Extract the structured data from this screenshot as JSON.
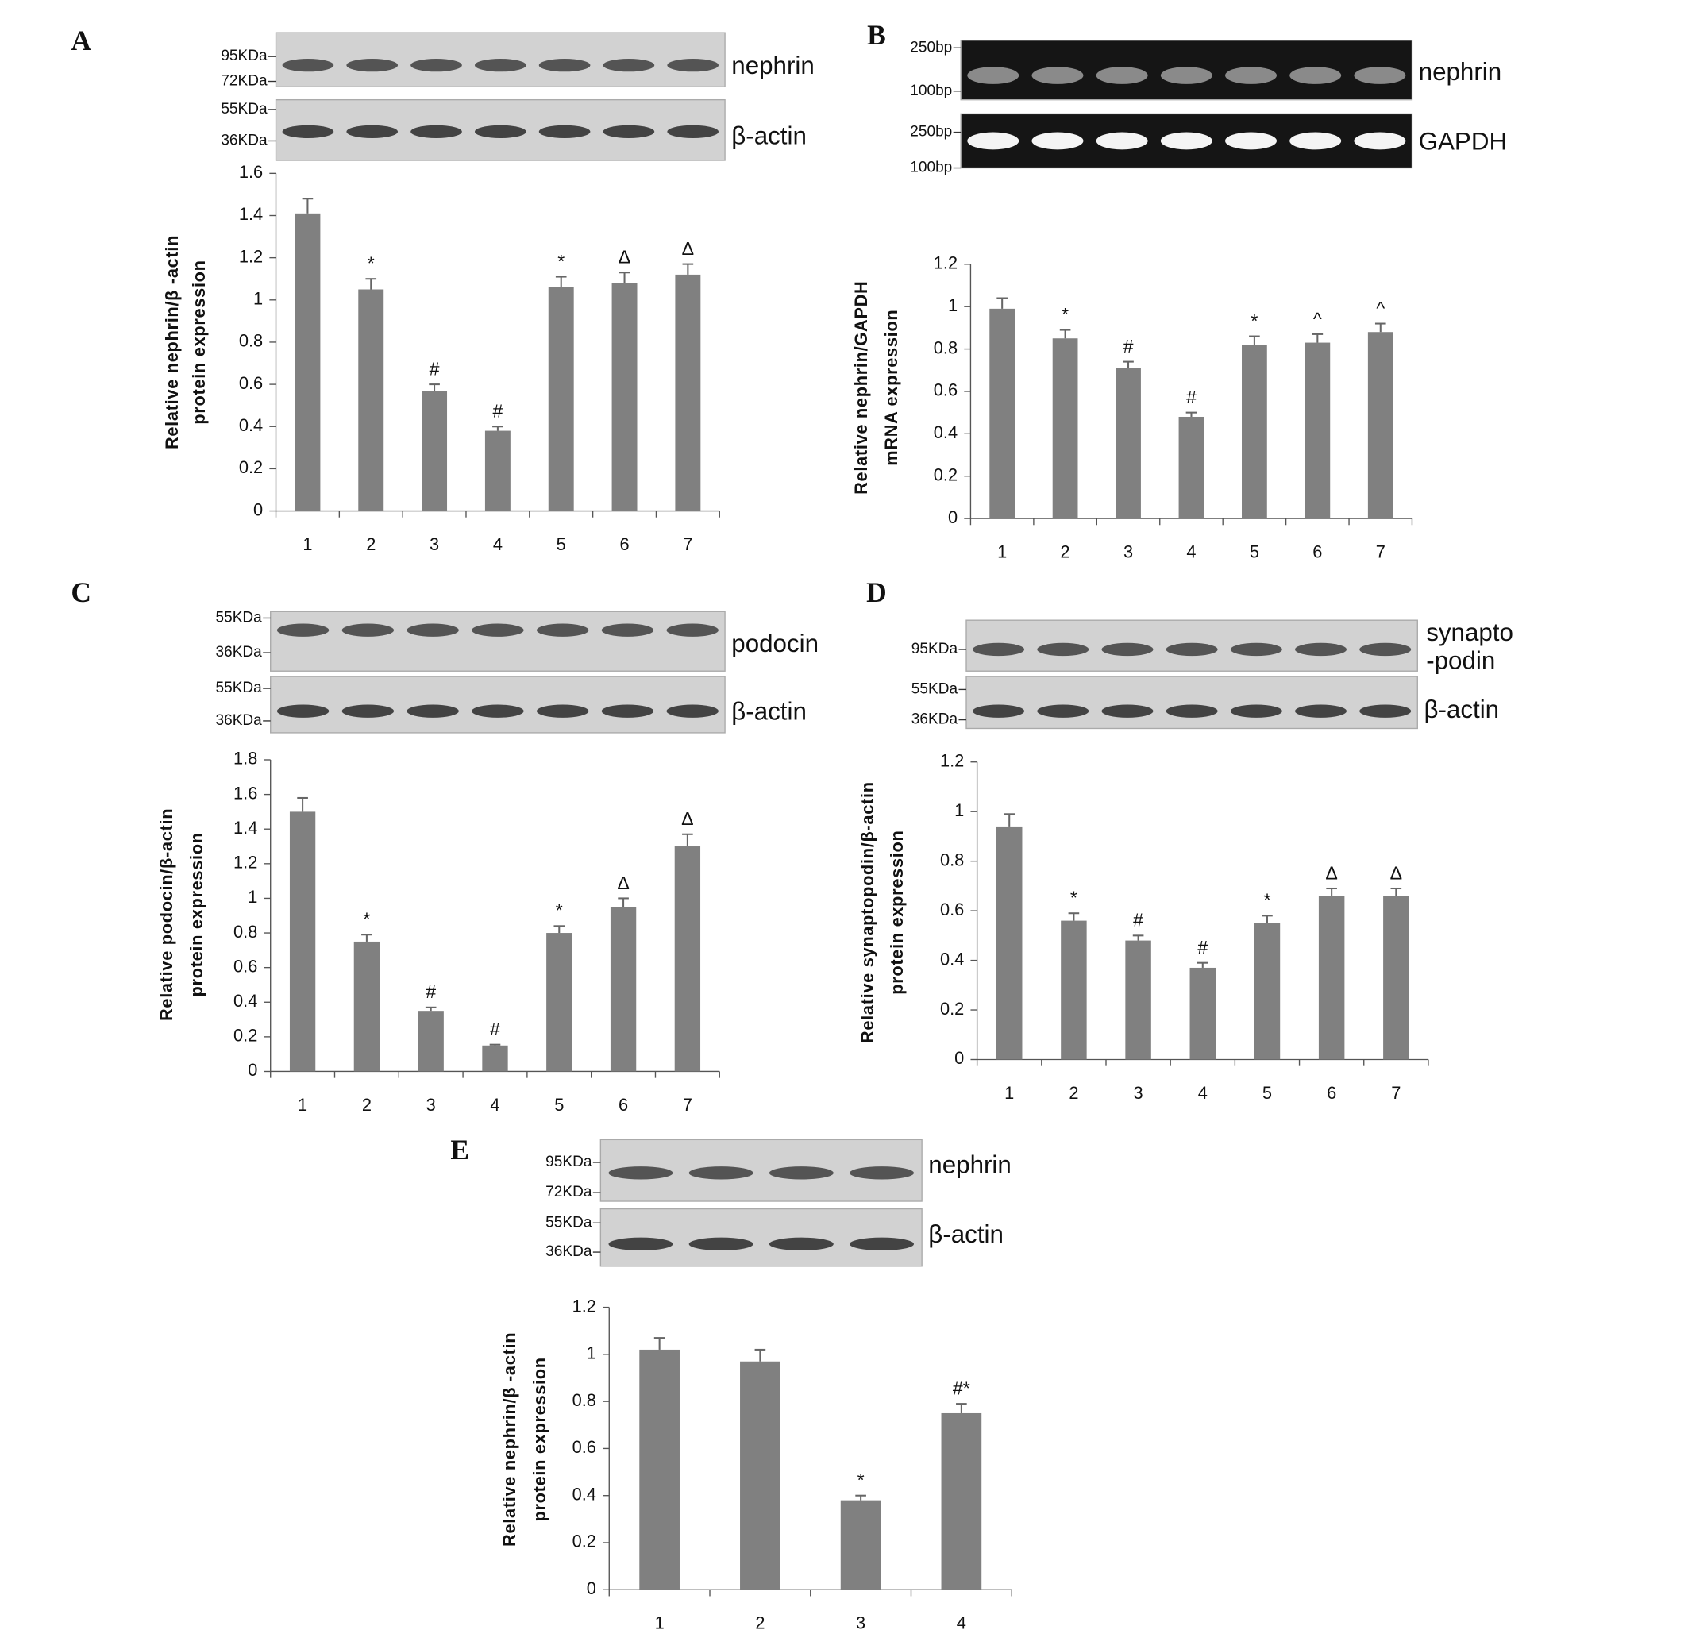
{
  "chart_data": [
    {
      "type": "bar",
      "panel": "A",
      "blots": [
        {
          "name": "nephrin",
          "markers": [
            "95KDa",
            "72KDa"
          ]
        },
        {
          "name": "β-actin",
          "markers": [
            "55KDa",
            "36KDa"
          ]
        }
      ],
      "ylabel": [
        "Relative nephrin/β -actin",
        "protein expression"
      ],
      "categories": [
        "1",
        "2",
        "3",
        "4",
        "5",
        "6",
        "7"
      ],
      "values": [
        1.41,
        1.05,
        0.57,
        0.38,
        1.06,
        1.08,
        1.12
      ],
      "errors": [
        0.07,
        0.05,
        0.03,
        0.02,
        0.05,
        0.05,
        0.05
      ],
      "annotations": [
        null,
        "*",
        "#",
        "#",
        "*",
        "Δ",
        "Δ"
      ],
      "color": "#808080",
      "ylim": [
        0,
        1.6
      ],
      "yticks": [
        0,
        0.2,
        0.4,
        0.6,
        0.8,
        1,
        1.2,
        1.4,
        1.6
      ]
    },
    {
      "type": "bar",
      "panel": "B",
      "gel": true,
      "blots": [
        {
          "name": "nephrin",
          "markers": [
            "250bp",
            "100bp"
          ]
        },
        {
          "name": "GAPDH",
          "markers": [
            "250bp",
            "100bp"
          ]
        }
      ],
      "ylabel": [
        "Relative nephrin/GAPDH",
        "mRNA expression"
      ],
      "categories": [
        "1",
        "2",
        "3",
        "4",
        "5",
        "6",
        "7"
      ],
      "values": [
        0.99,
        0.85,
        0.71,
        0.48,
        0.82,
        0.83,
        0.88
      ],
      "errors": [
        0.05,
        0.04,
        0.03,
        0.02,
        0.04,
        0.04,
        0.04
      ],
      "annotations": [
        null,
        "*",
        "#",
        "#",
        "*",
        "^",
        "^"
      ],
      "color": "#808080",
      "ylim": [
        0,
        1.2
      ],
      "yticks": [
        0,
        0.2,
        0.4,
        0.6,
        0.8,
        1,
        1.2
      ]
    },
    {
      "type": "bar",
      "panel": "C",
      "blots": [
        {
          "name": "podocin",
          "markers": [
            "55KDa",
            "36KDa"
          ]
        },
        {
          "name": "β-actin",
          "markers": [
            "55KDa",
            "36KDa"
          ]
        }
      ],
      "ylabel": [
        "Relative podocin/β-actin",
        "protein expression"
      ],
      "categories": [
        "1",
        "2",
        "3",
        "4",
        "5",
        "6",
        "7"
      ],
      "values": [
        1.5,
        0.75,
        0.35,
        0.15,
        0.8,
        0.95,
        1.3
      ],
      "errors": [
        0.08,
        0.04,
        0.02,
        0.005,
        0.04,
        0.05,
        0.07
      ],
      "annotations": [
        null,
        "*",
        "#",
        "#",
        "*",
        "Δ",
        "Δ"
      ],
      "color": "#808080",
      "ylim": [
        0,
        1.8
      ],
      "yticks": [
        0,
        0.2,
        0.4,
        0.6,
        0.8,
        1,
        1.2,
        1.4,
        1.6,
        1.8
      ]
    },
    {
      "type": "bar",
      "panel": "D",
      "blots": [
        {
          "name": [
            "synapto",
            "-podin"
          ],
          "markers": [
            "95KDa"
          ]
        },
        {
          "name": "β-actin",
          "markers": [
            "55KDa",
            "36KDa"
          ]
        }
      ],
      "ylabel": [
        "Relative synaptopodin/β-actin",
        "protein expression"
      ],
      "categories": [
        "1",
        "2",
        "3",
        "4",
        "5",
        "6",
        "7"
      ],
      "values": [
        0.94,
        0.56,
        0.48,
        0.37,
        0.55,
        0.66,
        0.66
      ],
      "errors": [
        0.05,
        0.03,
        0.02,
        0.02,
        0.03,
        0.03,
        0.03
      ],
      "annotations": [
        null,
        "*",
        "#",
        "#",
        "*",
        "Δ",
        "Δ"
      ],
      "color": "#808080",
      "ylim": [
        0,
        1.2
      ],
      "yticks": [
        0,
        0.2,
        0.4,
        0.6,
        0.8,
        1,
        1.2
      ]
    },
    {
      "type": "bar",
      "panel": "E",
      "blots": [
        {
          "name": "nephrin",
          "markers": [
            "95KDa",
            "72KDa"
          ]
        },
        {
          "name": "β-actin",
          "markers": [
            "55KDa",
            "36KDa"
          ]
        }
      ],
      "ylabel": [
        "Relative nephrin/β -actin",
        "protein expression"
      ],
      "categories": [
        "1",
        "2",
        "3",
        "4"
      ],
      "values": [
        1.02,
        0.97,
        0.38,
        0.75
      ],
      "errors": [
        0.05,
        0.05,
        0.02,
        0.04
      ],
      "annotations": [
        null,
        null,
        "*",
        "#*"
      ],
      "color": "#808080",
      "ylim": [
        0,
        1.2
      ],
      "yticks": [
        0,
        0.2,
        0.4,
        0.6,
        0.8,
        1,
        1.2
      ]
    }
  ]
}
